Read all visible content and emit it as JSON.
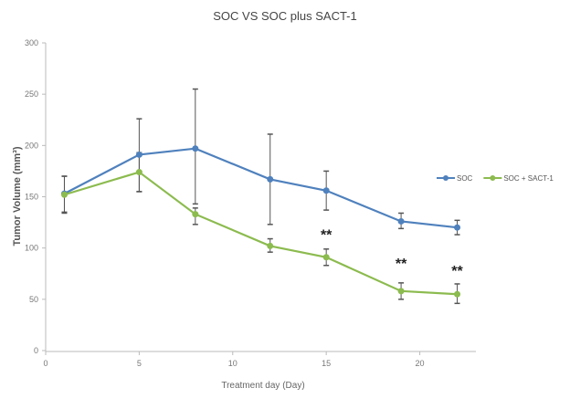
{
  "chart_data": {
    "type": "line",
    "title": "SOC VS SOC plus SACT-1",
    "xlabel": "Treatment day (Day)",
    "ylabel": "Tumor Volume (mm³)",
    "xlim": [
      0,
      23
    ],
    "ylim": [
      0,
      300
    ],
    "xticks": [
      0,
      5,
      10,
      15,
      20
    ],
    "yticks": [
      0,
      50,
      100,
      150,
      200,
      250,
      300
    ],
    "grid": false,
    "legend_position": "right",
    "x": [
      1,
      5,
      8,
      12,
      15,
      19,
      22
    ],
    "series": [
      {
        "name": "SOC",
        "color": "#4f81bd",
        "values": [
          153,
          191,
          197,
          167,
          156,
          126,
          120
        ],
        "err_low": [
          135,
          155,
          143,
          123,
          137,
          119,
          113
        ],
        "err_high": [
          170,
          226,
          255,
          211,
          175,
          134,
          127
        ]
      },
      {
        "name": "SOC + SACT-1",
        "color": "#8cbb4f",
        "values": [
          152,
          174,
          133,
          102,
          91,
          58,
          55
        ],
        "err_low": [
          134,
          155,
          123,
          96,
          83,
          50,
          46
        ],
        "err_high": [
          170,
          193,
          139,
          109,
          99,
          66,
          65
        ]
      }
    ],
    "annotations": [
      {
        "text": "**",
        "x": 15,
        "y": 108
      },
      {
        "text": "**",
        "x": 19,
        "y": 80
      },
      {
        "text": "**",
        "x": 22,
        "y": 73
      }
    ]
  }
}
